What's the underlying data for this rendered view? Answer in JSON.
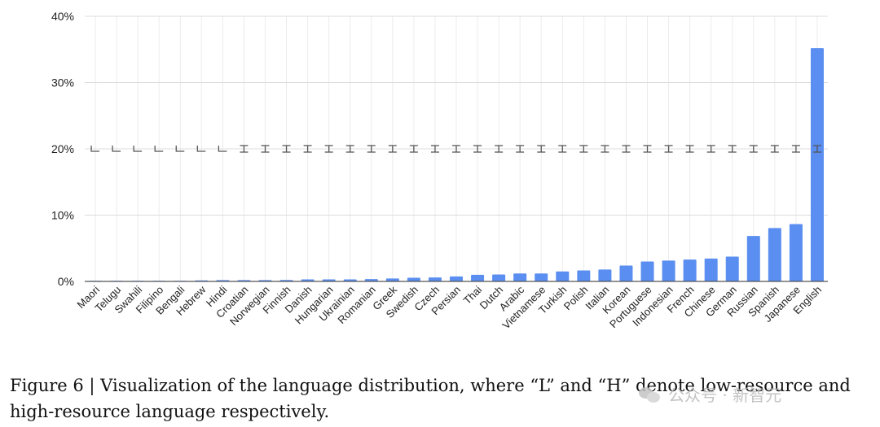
{
  "chart_data": {
    "type": "bar",
    "categories": [
      "Maori",
      "Telugu",
      "Swahili",
      "Filipino",
      "Bengali",
      "Hebrew",
      "Hindi",
      "Croatian",
      "Norwegian",
      "Finnish",
      "Danish",
      "Hungarian",
      "Ukrainian",
      "Romanian",
      "Greek",
      "Swedish",
      "Czech",
      "Persian",
      "Thai",
      "Dutch",
      "Arabic",
      "Vietnamese",
      "Turkish",
      "Polish",
      "Italian",
      "Korean",
      "Portuguese",
      "Indonesian",
      "French",
      "Chinese",
      "German",
      "Russian",
      "Spanish",
      "Japanese",
      "English"
    ],
    "values": [
      0.02,
      0.03,
      0.04,
      0.05,
      0.08,
      0.15,
      0.2,
      0.2,
      0.2,
      0.22,
      0.3,
      0.3,
      0.3,
      0.35,
      0.45,
      0.55,
      0.6,
      0.75,
      1.0,
      1.05,
      1.2,
      1.2,
      1.5,
      1.65,
      1.8,
      2.4,
      3.0,
      3.15,
      3.3,
      3.45,
      3.75,
      6.85,
      8.05,
      8.65,
      35.2
    ],
    "resource_marks": [
      "L",
      "L",
      "L",
      "L",
      "L",
      "L",
      "L",
      "H",
      "H",
      "H",
      "H",
      "H",
      "H",
      "H",
      "H",
      "H",
      "H",
      "H",
      "H",
      "H",
      "H",
      "H",
      "H",
      "H",
      "H",
      "H",
      "H",
      "H",
      "H",
      "H",
      "H",
      "H",
      "H",
      "H",
      "H"
    ],
    "y_ticks": [
      "0%",
      "10%",
      "20%",
      "30%",
      "40%"
    ],
    "ylim": [
      0,
      40
    ],
    "grid": true,
    "bar_color": "#5a8ef0",
    "mark_color": "#555555",
    "title": "",
    "xlabel": "",
    "ylabel": ""
  },
  "caption": "Figure 6 | Visualization of the language distribution, where “L” and “H” denote low-resource and high-resource language respectively.",
  "watermark": "公众号 · 新智元"
}
